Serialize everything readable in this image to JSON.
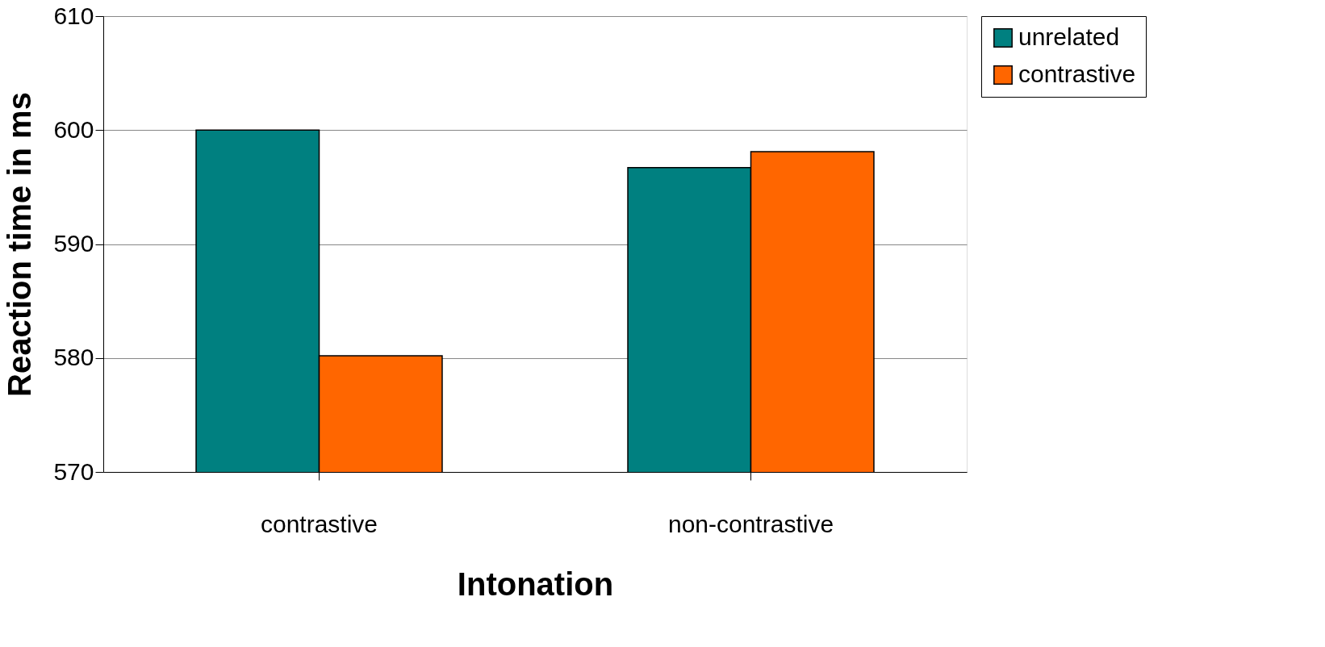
{
  "chart_data": {
    "type": "bar",
    "xlabel": "Intonation",
    "ylabel": "Reaction time in ms",
    "categories": [
      "contrastive",
      "non-contrastive"
    ],
    "series": [
      {
        "name": "unrelated",
        "color": "#008080",
        "values": [
          600,
          596.7
        ]
      },
      {
        "name": "contrastive",
        "color": "#ff6600",
        "values": [
          580.2,
          598.1
        ]
      }
    ],
    "ylim": [
      570,
      610
    ],
    "yticks": [
      570,
      580,
      590,
      600,
      610
    ],
    "grid": "y",
    "legend": "right"
  }
}
